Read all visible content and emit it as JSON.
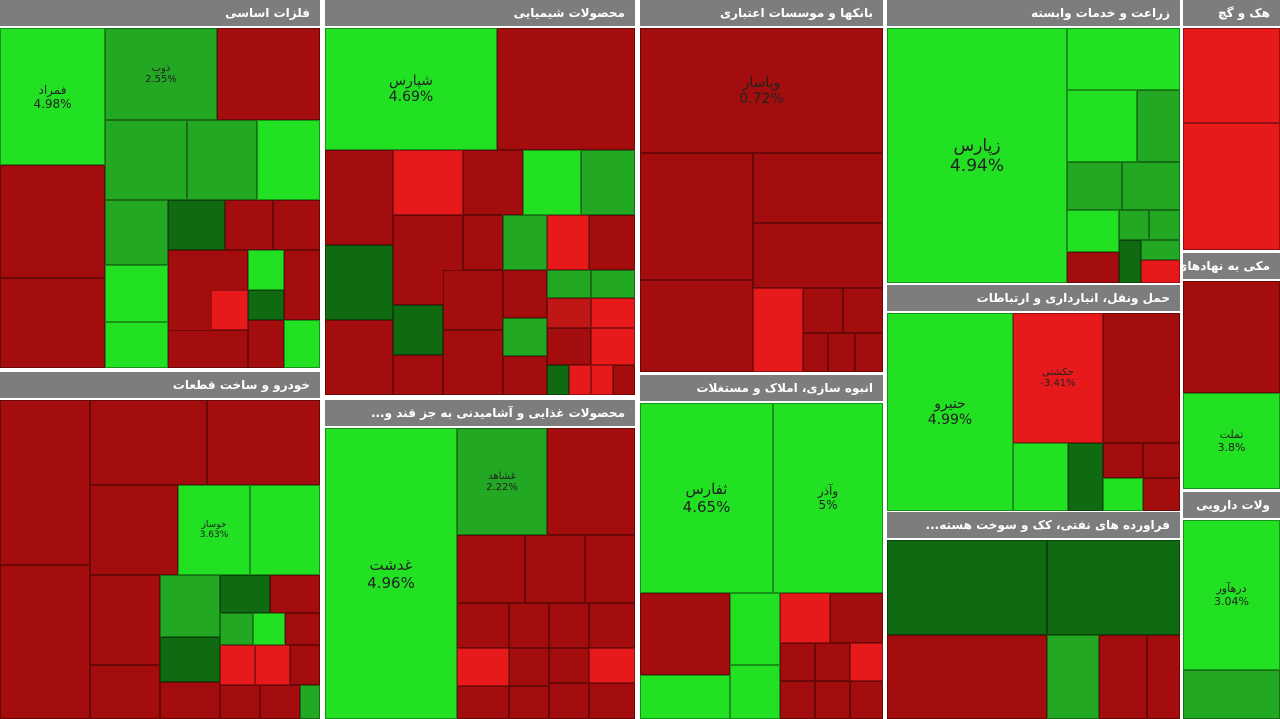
{
  "sectors": [
    {
      "title": "فلزات اساسی",
      "tiles": [
        {
          "name": "فمراد",
          "change": "4.98%"
        },
        {
          "name": "ذوب",
          "change": "2.55%"
        }
      ]
    },
    {
      "title": "محصولات شیمیایی",
      "tiles": [
        {
          "name": "شپارس",
          "change": "4.69%"
        }
      ]
    },
    {
      "title": "بانکها و موسسات اعتباری",
      "tiles": [
        {
          "name": "وپاسار",
          "change": "0.72%"
        }
      ]
    },
    {
      "title": "زراعت و خدمات وابسته",
      "tiles": [
        {
          "name": "زپارس",
          "change": "4.94%"
        }
      ]
    },
    {
      "title": "هک و گچ",
      "tiles": []
    },
    {
      "title": "خودرو و ساخت قطعات",
      "tiles": [
        {
          "name": "خوساز",
          "change": "3.63%"
        }
      ]
    },
    {
      "title": "محصولات غذایی و آشامیدنی به جز قند و...",
      "tiles": [
        {
          "name": "غدشت",
          "change": "4.96%"
        },
        {
          "name": "غشاهد",
          "change": "2.22%"
        }
      ]
    },
    {
      "title": "انبوه سازی، املاک و مستغلات",
      "tiles": [
        {
          "name": "ثفارس",
          "change": "4.65%"
        },
        {
          "name": "وآذر",
          "change": "5%"
        }
      ]
    },
    {
      "title": "حمل ونقل، انبارداری و ارتباطات",
      "tiles": [
        {
          "name": "حتیرو",
          "change": "4.99%"
        },
        {
          "name": "حکشتی",
          "change": "-3.41%"
        }
      ]
    },
    {
      "title": "فراورده های نفتی، کک و سوخت هسته...",
      "tiles": []
    },
    {
      "title": "مکی به نهادهای",
      "tiles": [
        {
          "name": "تملت",
          "change": "3.8%"
        }
      ]
    },
    {
      "title": "ولات دارویی",
      "tiles": [
        {
          "name": "درهآور",
          "change": "3.04%"
        }
      ]
    }
  ]
}
